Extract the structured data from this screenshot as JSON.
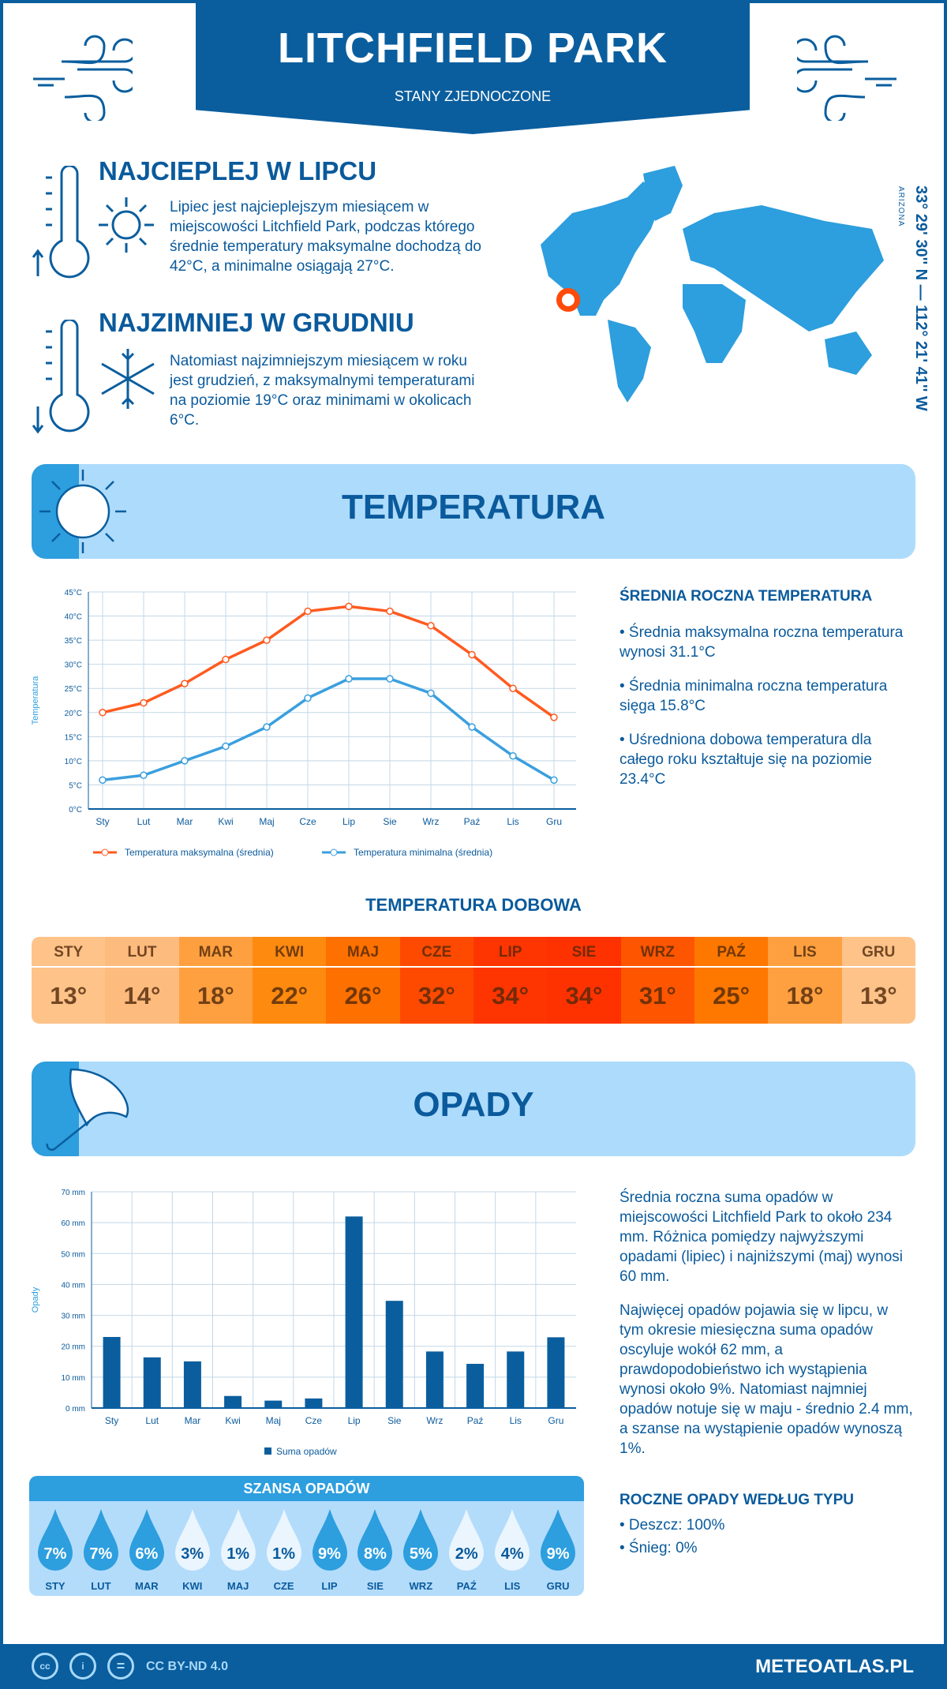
{
  "header": {
    "title": "LITCHFIELD PARK",
    "subtitle": "STANY ZJEDNOCZONE"
  },
  "warmest": {
    "heading": "NAJCIEPLEJ W LIPCU",
    "text": "Lipiec jest najcieplejszym miesiącem w miejscowości Litchfield Park, podczas którego średnie temperatury maksymalne dochodzą do 42°C, a minimalne osiągają 27°C."
  },
  "coldest": {
    "heading": "NAJZIMNIEJ W GRUDNIU",
    "text": "Natomiast najzimniejszym miesiącem w roku jest grudzień, z maksymalnymi temperaturami na poziomie 19°C oraz minimami w okolicach 6°C."
  },
  "location": {
    "coords": "33° 29' 30'' N — 112° 21' 41'' W",
    "region": "ARIZONA",
    "marker_color": "#ff4a0a"
  },
  "temperature_section": {
    "title": "TEMPERATURA"
  },
  "temp_summary": {
    "heading": "ŚREDNIA ROCZNA TEMPERATURA",
    "items": [
      "• Średnia maksymalna roczna temperatura wynosi 31.1°C",
      "• Średnia minimalna roczna temperatura sięga 15.8°C",
      "• Uśredniona dobowa temperatura dla całego roku kształtuje się na poziomie 23.4°C"
    ]
  },
  "daily": {
    "title": "TEMPERATURA DOBOWA",
    "months": [
      "STY",
      "LUT",
      "MAR",
      "KWI",
      "MAJ",
      "CZE",
      "LIP",
      "SIE",
      "WRZ",
      "PAŹ",
      "LIS",
      "GRU"
    ],
    "values": [
      "13°",
      "14°",
      "18°",
      "22°",
      "26°",
      "32°",
      "34°",
      "34°",
      "31°",
      "25°",
      "18°",
      "13°"
    ],
    "colors": [
      "#fec389",
      "#febb7e",
      "#fea040",
      "#fe8a10",
      "#fe7000",
      "#fe4a00",
      "#fe3500",
      "#fe3200",
      "#fe5500",
      "#fe7800",
      "#fea040",
      "#fec389"
    ]
  },
  "precip_section": {
    "title": "OPADY"
  },
  "precip_text": [
    "Średnia roczna suma opadów w miejscowości Litchfield Park to około 234 mm. Różnica pomiędzy najwyższymi opadami (lipiec) i najniższymi (maj) wynosi 60 mm.",
    "Najwięcej opadów pojawia się w lipcu, w tym okresie miesięczna suma opadów oscyluje wokół 62 mm, a prawdopodobieństwo ich wystąpienia wynosi około 9%. Natomiast najmniej opadów notuje się w maju - średnio 2.4 mm, a szanse na wystąpienie opadów wynoszą 1%."
  ],
  "precip_type": {
    "heading": "ROCZNE OPADY WEDŁUG TYPU",
    "items": [
      "• Deszcz: 100%",
      "• Śnieg: 0%"
    ]
  },
  "chance": {
    "title": "SZANSA OPADÓW",
    "months": [
      "STY",
      "LUT",
      "MAR",
      "KWI",
      "MAJ",
      "CZE",
      "LIP",
      "SIE",
      "WRZ",
      "PAŹ",
      "LIS",
      "GRU"
    ],
    "values": [
      "7%",
      "7%",
      "6%",
      "3%",
      "1%",
      "1%",
      "9%",
      "8%",
      "5%",
      "2%",
      "4%",
      "9%"
    ]
  },
  "footer": {
    "license": "CC BY-ND 4.0",
    "site": "METEOATLAS.PL",
    "cc": "cc",
    "eq": "="
  },
  "chart_data": [
    {
      "type": "line",
      "ylabel": "Temperatura",
      "ylim": [
        0,
        45
      ],
      "yticks": [
        "0°C",
        "5°C",
        "10°C",
        "15°C",
        "20°C",
        "25°C",
        "30°C",
        "35°C",
        "40°C",
        "45°C"
      ],
      "categories": [
        "Sty",
        "Lut",
        "Mar",
        "Kwi",
        "Maj",
        "Cze",
        "Lip",
        "Sie",
        "Wrz",
        "Paź",
        "Lis",
        "Gru"
      ],
      "grid": true,
      "legend": "bottom",
      "series": [
        {
          "name": "Temperatura maksymalna (średnia)",
          "color": "#ff5a1f",
          "values": [
            20,
            22,
            26,
            31,
            35,
            41,
            42,
            41,
            38,
            32,
            25,
            19
          ]
        },
        {
          "name": "Temperatura minimalna (średnia)",
          "color": "#3a9fde",
          "values": [
            6,
            7,
            10,
            13,
            17,
            23,
            27,
            27,
            24,
            17,
            11,
            6
          ]
        }
      ]
    },
    {
      "type": "bar",
      "ylabel": "Opady",
      "ylim": [
        0,
        70
      ],
      "yticks": [
        "0 mm",
        "10 mm",
        "20 mm",
        "30 mm",
        "40 mm",
        "50 mm",
        "60 mm",
        "70 mm"
      ],
      "categories": [
        "Sty",
        "Lut",
        "Mar",
        "Kwi",
        "Maj",
        "Cze",
        "Lip",
        "Sie",
        "Wrz",
        "Paź",
        "Lis",
        "Gru"
      ],
      "grid": true,
      "legend": "bottom",
      "series": [
        {
          "name": "Suma opadów",
          "color": "#0a5e9e",
          "values": [
            23,
            16.4,
            15.1,
            3.9,
            2.4,
            3.1,
            62,
            34.7,
            18.3,
            14.3,
            18.3,
            22.9
          ]
        }
      ]
    }
  ]
}
